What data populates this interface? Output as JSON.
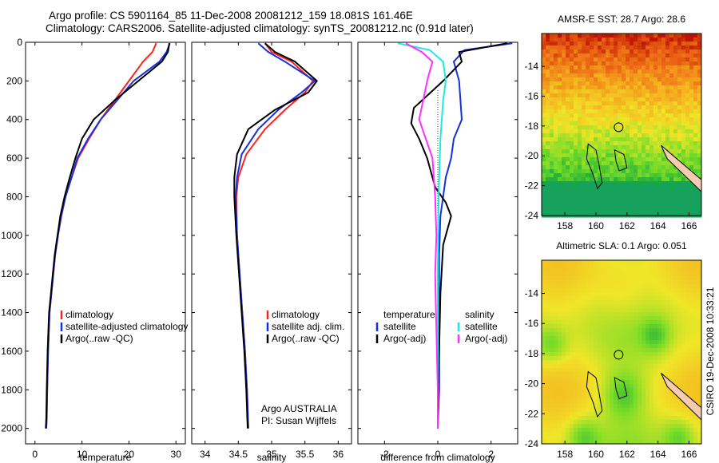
{
  "header": {
    "title": "Argo profile: CS 5901164_85 11-Dec-2008 20081212_159 18.081S 161.46E",
    "subtitle": "Climatology: CARS2006. Satellite-adjusted climatology: synTS_20081212.nc (0.91d later)"
  },
  "credit": "CSIRO 19-Dec-2008 10:33:21",
  "colors": {
    "climatology": "#ff2020",
    "satellite": "#1530e0",
    "argo": "#000000",
    "magenta": "#ff30ff",
    "cyan": "#20e8e8",
    "sea_warm": "#c81e00",
    "land": "#f7cbb0"
  },
  "chart_data": [
    {
      "type": "line",
      "xlabel": "temperature",
      "xlim": [
        -2,
        32
      ],
      "ylim": [
        2080,
        0
      ],
      "xticks": [
        0,
        10,
        20,
        30
      ],
      "yticks": [
        0,
        200,
        400,
        600,
        800,
        1000,
        1200,
        1400,
        1600,
        1800,
        2000
      ],
      "legend": [
        "climatology",
        "satellite-adjusted climatology",
        "Argo(..raw -QC)"
      ],
      "series": [
        {
          "name": "climatology",
          "x": [
            25.8,
            25,
            23,
            20,
            17,
            14,
            11.5,
            9.2,
            7.8,
            6.5,
            5.6,
            4.9,
            4.3,
            3.9,
            3.5,
            3.1,
            2.8,
            2.6,
            2.5,
            2.4
          ],
          "y": [
            5,
            50,
            100,
            200,
            300,
            400,
            500,
            600,
            700,
            800,
            900,
            1000,
            1100,
            1200,
            1300,
            1400,
            1600,
            1800,
            1950,
            2000
          ]
        },
        {
          "name": "satellite-adjusted climatology",
          "x": [
            28.7,
            28,
            26.5,
            21,
            17.5,
            14,
            11.3,
            9.0,
            7.8,
            6.5,
            5.6,
            4.9,
            4.3,
            3.9,
            3.5,
            3.1,
            2.8,
            2.6,
            2.5,
            2.4
          ],
          "y": [
            5,
            50,
            100,
            200,
            300,
            400,
            500,
            600,
            700,
            800,
            900,
            1000,
            1100,
            1200,
            1300,
            1400,
            1600,
            1800,
            1950,
            2000
          ]
        },
        {
          "name": "Argo(..raw -QC)",
          "x": [
            28.6,
            28.3,
            27,
            22,
            17,
            12.5,
            10,
            8.6,
            7.4,
            6.3,
            5.4,
            4.8,
            4.2,
            3.8,
            3.4,
            3.0,
            2.7,
            2.5,
            2.4,
            2.3
          ],
          "y": [
            5,
            50,
            100,
            200,
            300,
            400,
            500,
            600,
            700,
            800,
            900,
            1000,
            1100,
            1200,
            1300,
            1400,
            1600,
            1800,
            1950,
            2000
          ]
        }
      ]
    },
    {
      "type": "line",
      "xlabel": "salinity",
      "xlim": [
        33.8,
        36.2
      ],
      "ylim": [
        2080,
        0
      ],
      "xticks": [
        34,
        34.5,
        35,
        35.5,
        36
      ],
      "legend": [
        "climatology",
        "satellite adj. clim.",
        "Argo(..raw -QC)"
      ],
      "annotation": [
        "Argo AUSTRALIA",
        "PI: Susan Wijffels"
      ],
      "series": [
        {
          "name": "climatology",
          "x": [
            34.9,
            35.0,
            35.3,
            35.62,
            35.5,
            35.2,
            34.9,
            34.62,
            34.5,
            34.47,
            34.48,
            34.52,
            34.56,
            34.6,
            34.63,
            34.65
          ],
          "y": [
            5,
            50,
            100,
            200,
            260,
            350,
            450,
            580,
            700,
            800,
            1000,
            1200,
            1400,
            1600,
            1800,
            2000
          ]
        },
        {
          "name": "satellite adj. clim.",
          "x": [
            34.8,
            34.95,
            35.2,
            35.65,
            35.45,
            35.1,
            34.8,
            34.55,
            34.48,
            34.46,
            34.48,
            34.52,
            34.56,
            34.6,
            34.63,
            34.65
          ],
          "y": [
            5,
            50,
            100,
            200,
            260,
            350,
            450,
            580,
            700,
            800,
            1000,
            1200,
            1400,
            1600,
            1800,
            2000
          ]
        },
        {
          "name": "Argo(..raw -QC)",
          "x": [
            34.9,
            35.05,
            35.35,
            35.68,
            35.55,
            35.05,
            34.65,
            34.48,
            34.44,
            34.44,
            34.47,
            34.51,
            34.55,
            34.59,
            34.62,
            34.64
          ],
          "y": [
            5,
            50,
            100,
            200,
            260,
            350,
            450,
            580,
            700,
            800,
            1000,
            1200,
            1400,
            1600,
            1800,
            2000
          ]
        }
      ]
    },
    {
      "type": "line",
      "xlabel": "difference from climatology",
      "xlim": [
        -3,
        3
      ],
      "ylim": [
        2080,
        0
      ],
      "xticks": [
        -2,
        0,
        2
      ],
      "legend": [
        "temperature",
        "satellite",
        "Argo(-adj)",
        "salinity",
        "satellite",
        "Argo(-adj)"
      ],
      "series": [
        {
          "name": "temperature satellite",
          "x": [
            2.8,
            1.0,
            0.6,
            0.8,
            0.9,
            0.6,
            0.5,
            0.3,
            0.2,
            0.1,
            0.05,
            0.05,
            0.05,
            0.05,
            0.0
          ],
          "y": [
            5,
            40,
            100,
            200,
            400,
            500,
            600,
            700,
            800,
            900,
            1100,
            1400,
            1600,
            1800,
            2000
          ]
        },
        {
          "name": "temperature Argo(-adj)",
          "x": [
            2.6,
            0.8,
            0.9,
            0.2,
            -0.9,
            -1.0,
            -0.7,
            -0.4,
            -0.1,
            0.3,
            0.5,
            0.2,
            0.1,
            0.05,
            0.0,
            0.0
          ],
          "y": [
            5,
            50,
            100,
            200,
            340,
            420,
            500,
            600,
            750,
            830,
            900,
            1050,
            1300,
            1600,
            1850,
            2000
          ]
        },
        {
          "name": "salinity satellite",
          "x": [
            -1.5,
            -0.3,
            0.2,
            0.3,
            0.2,
            0.1,
            0.05,
            0.02,
            0.0,
            0.0,
            0.0,
            0.0
          ],
          "y": [
            5,
            40,
            100,
            200,
            300,
            500,
            700,
            900,
            1200,
            1500,
            1800,
            2000
          ]
        },
        {
          "name": "salinity Argo(-adj)",
          "x": [
            -1.2,
            -0.6,
            -0.2,
            -0.4,
            -0.7,
            -0.2,
            -0.1,
            -0.05,
            -0.1,
            -0.05,
            0.0,
            0.0
          ],
          "y": [
            5,
            50,
            100,
            200,
            400,
            600,
            800,
            1000,
            1200,
            1500,
            1800,
            2000
          ]
        }
      ]
    },
    {
      "type": "heatmap",
      "title": "AMSR-E SST: 28.7 Argo: 28.6",
      "xticks": [
        158,
        160,
        162,
        164,
        166
      ],
      "yticks": [
        -14,
        -16,
        -18,
        -20,
        -22,
        -24
      ],
      "xlim": [
        156.5,
        166.8
      ],
      "ylim": [
        -24,
        -11.8
      ],
      "marker": {
        "lon": 161.46,
        "lat": -18.081
      }
    },
    {
      "type": "heatmap",
      "title": "Altimetric SLA: 0.1 Argo: 0.051",
      "xticks": [
        158,
        160,
        162,
        164,
        166
      ],
      "yticks": [
        -14,
        -16,
        -18,
        -20,
        -22,
        -24
      ],
      "xlim": [
        156.5,
        166.8
      ],
      "ylim": [
        -24,
        -11.8
      ],
      "marker": {
        "lon": 161.46,
        "lat": -18.081
      }
    }
  ]
}
